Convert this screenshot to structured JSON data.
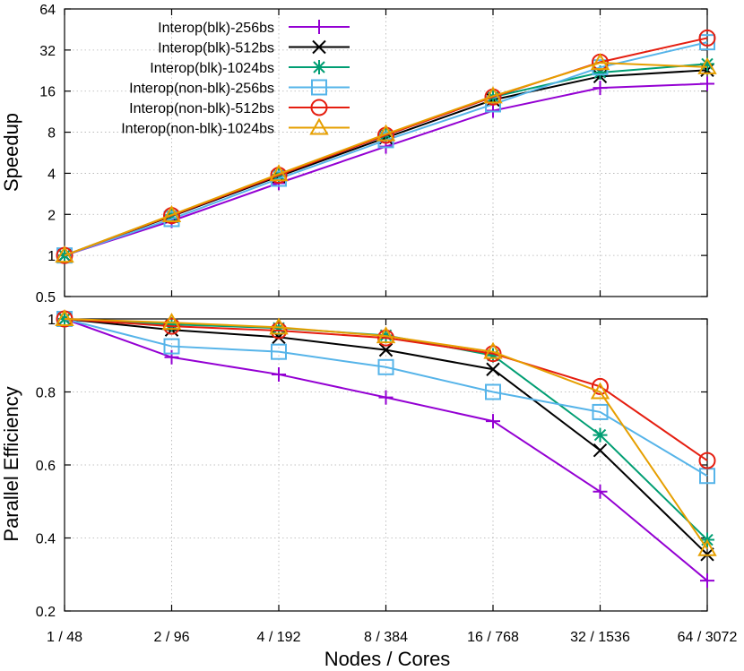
{
  "chart_data": [
    {
      "type": "line",
      "ylabel": "Speedup",
      "yscale": "log2",
      "ylim": [
        0.5,
        64
      ],
      "yticks": [
        0.5,
        1,
        2,
        4,
        8,
        16,
        32,
        64
      ],
      "ytick_labels": [
        "0.5",
        "1",
        "2",
        "4",
        "8",
        "16",
        "32",
        "64"
      ],
      "x_tick_labels_shown": false,
      "grid": true,
      "legend": "top-left",
      "series": [
        {
          "name": "Interop(blk)-256bs",
          "color": "#9400d3",
          "marker": "plus",
          "values": [
            1,
            1.79,
            3.39,
            6.28,
            11.5,
            16.9,
            18.1
          ]
        },
        {
          "name": "Interop(blk)-512bs",
          "color": "#000000",
          "marker": "cross",
          "values": [
            1,
            1.94,
            3.8,
            7.3,
            13.8,
            20.5,
            22.8
          ]
        },
        {
          "name": "Interop(blk)-1024bs",
          "color": "#009e73",
          "marker": "star",
          "values": [
            1,
            1.97,
            3.9,
            7.7,
            14.5,
            21.9,
            25.3
          ]
        },
        {
          "name": "Interop(non-blk)-256bs",
          "color": "#56b4e9",
          "marker": "square",
          "values": [
            1,
            1.85,
            3.65,
            7.0,
            12.8,
            23.9,
            36.5
          ]
        },
        {
          "name": "Interop(non-blk)-512bs",
          "color": "#e51e10",
          "marker": "circle",
          "values": [
            1,
            1.96,
            3.87,
            7.6,
            14.5,
            26.1,
            39.2
          ]
        },
        {
          "name": "Interop(non-blk)-1024bs",
          "color": "#e69f00",
          "marker": "triangle",
          "values": [
            1,
            1.98,
            3.95,
            7.75,
            14.7,
            25.8,
            24.0
          ]
        }
      ]
    },
    {
      "type": "line",
      "xlabel": "Nodes / Cores",
      "ylabel": "Parallel Efficiency",
      "categories": [
        "1 / 48",
        "2 / 96",
        "4 / 192",
        "8 / 384",
        "16 / 768",
        "32 / 1536",
        "64 / 3072"
      ],
      "ylim": [
        0.2,
        1.0
      ],
      "yticks": [
        0.2,
        0.4,
        0.6,
        0.8,
        1
      ],
      "ytick_labels": [
        "0.2",
        "0.4",
        "0.6",
        "0.8",
        "1"
      ],
      "grid": true,
      "series": [
        {
          "name": "Interop(blk)-256bs",
          "color": "#9400d3",
          "marker": "plus",
          "values": [
            1.0,
            0.895,
            0.848,
            0.785,
            0.72,
            0.527,
            0.283
          ]
        },
        {
          "name": "Interop(blk)-512bs",
          "color": "#000000",
          "marker": "cross",
          "values": [
            1.0,
            0.97,
            0.95,
            0.915,
            0.862,
            0.64,
            0.355
          ]
        },
        {
          "name": "Interop(blk)-1024bs",
          "color": "#009e73",
          "marker": "star",
          "values": [
            1.0,
            0.985,
            0.975,
            0.955,
            0.9,
            0.682,
            0.395
          ]
        },
        {
          "name": "Interop(non-blk)-256bs",
          "color": "#56b4e9",
          "marker": "square",
          "values": [
            1.0,
            0.925,
            0.91,
            0.868,
            0.8,
            0.745,
            0.57
          ]
        },
        {
          "name": "Interop(non-blk)-512bs",
          "color": "#e51e10",
          "marker": "circle",
          "values": [
            1.0,
            0.98,
            0.968,
            0.948,
            0.905,
            0.815,
            0.612
          ]
        },
        {
          "name": "Interop(non-blk)-1024bs",
          "color": "#e69f00",
          "marker": "triangle",
          "values": [
            1.0,
            0.99,
            0.977,
            0.953,
            0.91,
            0.8,
            0.37
          ]
        }
      ]
    }
  ]
}
